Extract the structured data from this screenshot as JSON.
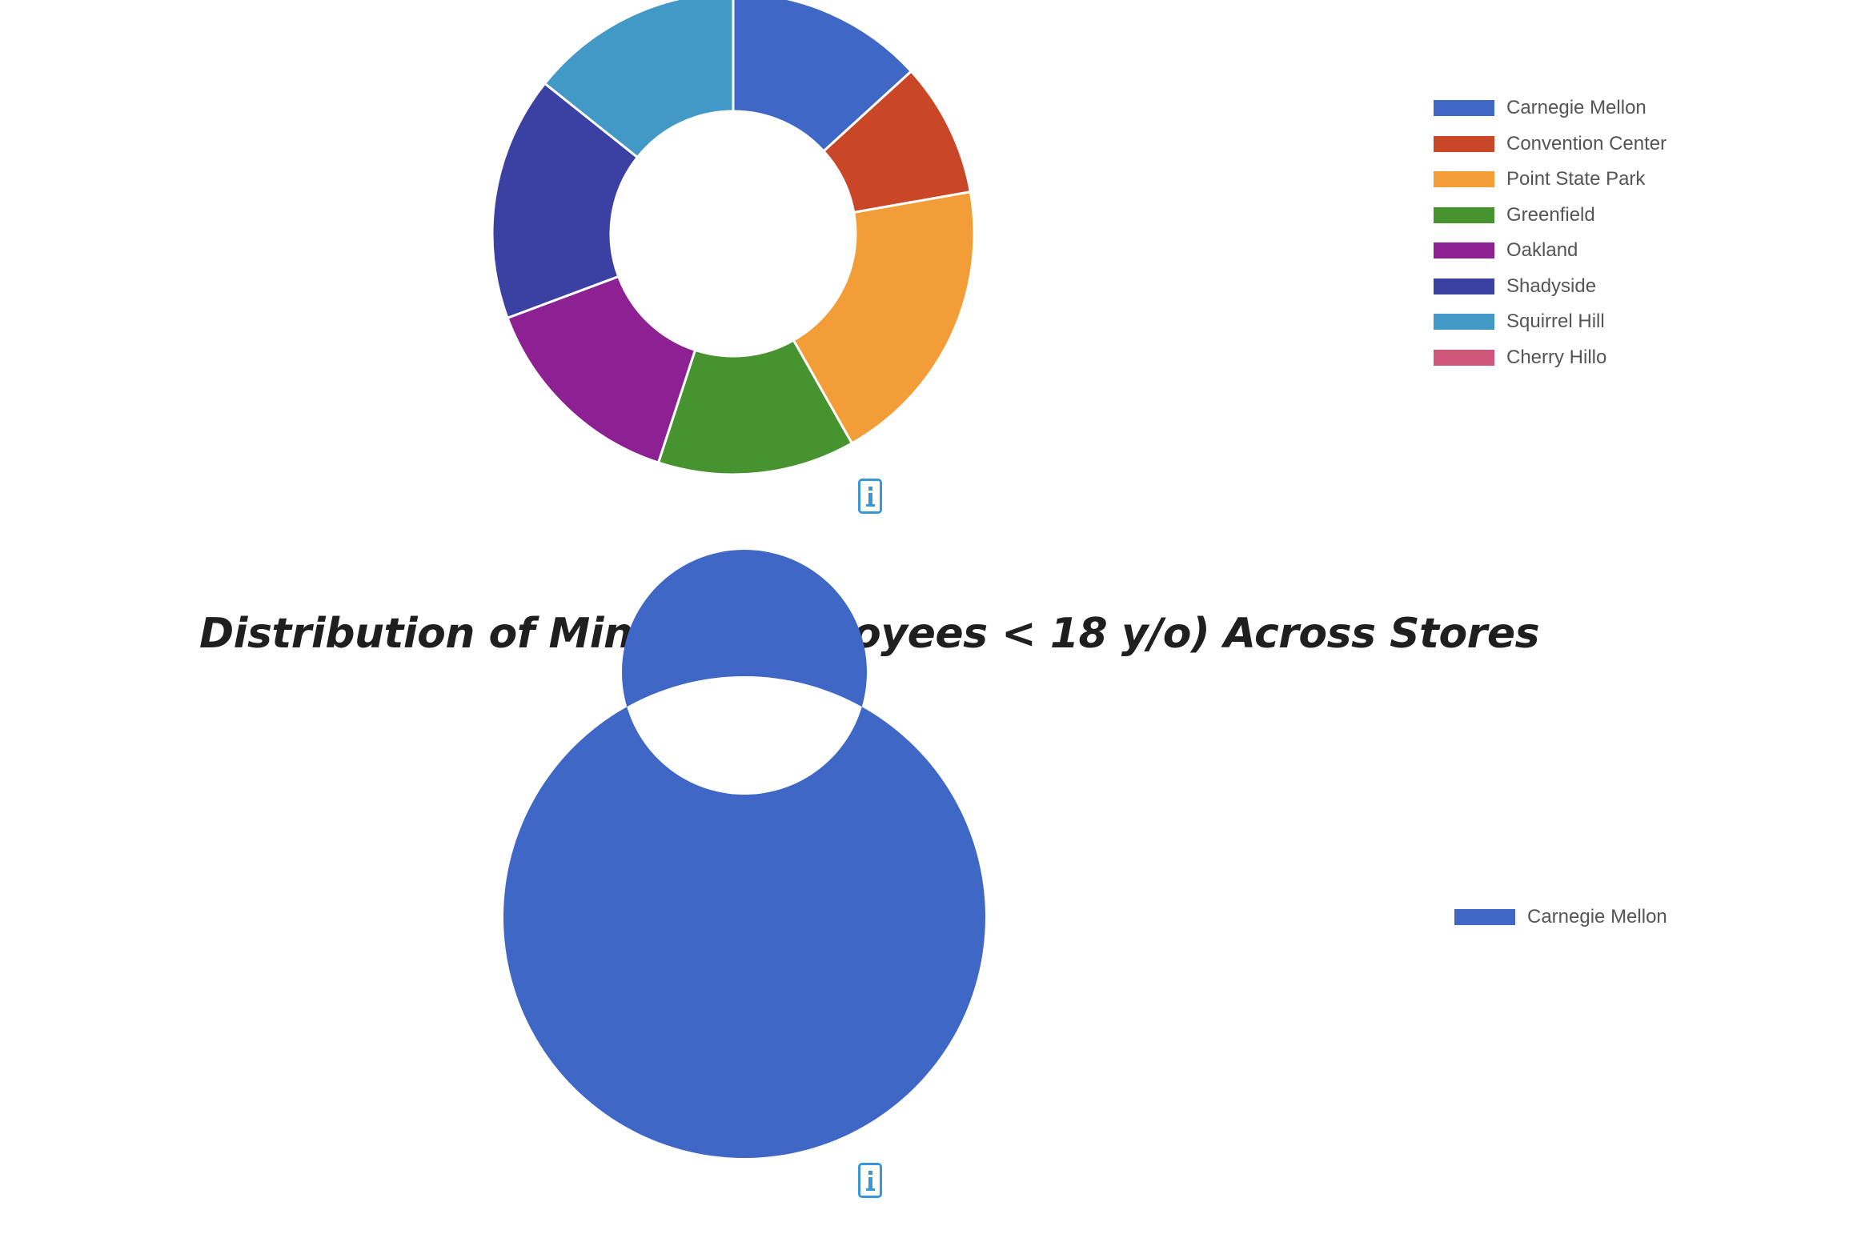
{
  "chart_data": [
    {
      "type": "pie",
      "title": "",
      "donut": true,
      "categories": [
        "Carnegie Mellon",
        "Convention Center",
        "Point State Park",
        "Greenfield",
        "Oakland",
        "Shadyside",
        "Squirrel Hill",
        "Cherry Hillo"
      ],
      "values": [
        12.5,
        8.5,
        18.5,
        12.5,
        13.5,
        15.5,
        13.5,
        0
      ],
      "colors": [
        "#3f67c6",
        "#c94627",
        "#f29d38",
        "#46932f",
        "#8d2193",
        "#3b40a3",
        "#4399c5",
        "#d0557a"
      ],
      "legend_position": "right"
    },
    {
      "type": "pie",
      "title": "Distribution of Minors (Employees < 18 y/o) Across Stores",
      "donut": true,
      "categories": [
        "Carnegie Mellon"
      ],
      "values": [
        100
      ],
      "colors": [
        "#3f67c6"
      ],
      "legend_position": "right"
    }
  ],
  "icons": {
    "info": "info-icon"
  }
}
